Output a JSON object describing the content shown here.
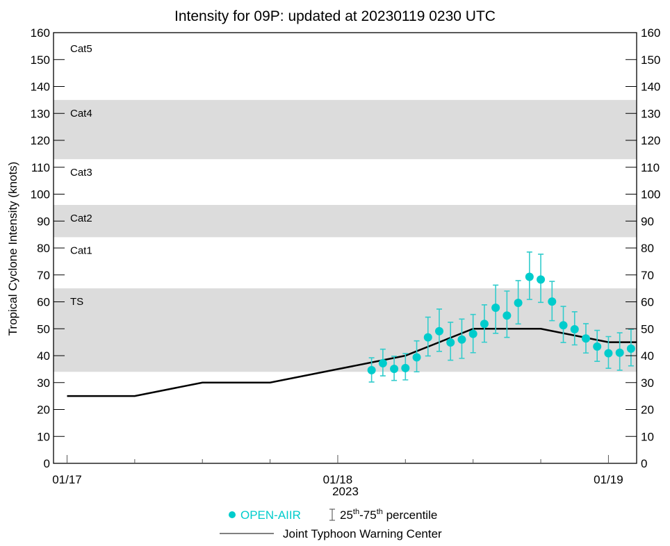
{
  "chart_data": {
    "type": "scatter",
    "title": "Intensity for 09P: updated at 20230119 0230 UTC",
    "ylabel": "Tropical Cyclone Intensity (knots)",
    "xlabel": "2023",
    "ylim": [
      0,
      160
    ],
    "yticks": [
      0,
      10,
      20,
      30,
      40,
      50,
      60,
      70,
      80,
      90,
      100,
      110,
      120,
      130,
      140,
      150,
      160
    ],
    "xlim": [
      "2023-01-16 22:48",
      "2023-01-19 02:30"
    ],
    "xticks": [
      {
        "time": "2023-01-17 00:00",
        "label": "01/17"
      },
      {
        "time": "2023-01-18 00:00",
        "label": "01/18"
      },
      {
        "time": "2023-01-19 00:00",
        "label": "01/19"
      }
    ],
    "minor_xtick_hours": 6,
    "grid": false,
    "bands": [
      {
        "label": "TS",
        "from": 34,
        "to": 65,
        "shaded": true
      },
      {
        "label": "Cat1",
        "from": 65,
        "to": 84,
        "shaded": false
      },
      {
        "label": "Cat2",
        "from": 84,
        "to": 96,
        "shaded": true
      },
      {
        "label": "Cat3",
        "from": 96,
        "to": 113,
        "shaded": false
      },
      {
        "label": "Cat4",
        "from": 113,
        "to": 135,
        "shaded": true
      },
      {
        "label": "Cat5",
        "from": 135,
        "to": 160,
        "shaded": false
      }
    ],
    "band_color": "#dcdcdc",
    "series": [
      {
        "name": "OPEN-AIIR",
        "color": "#00cccc",
        "type": "scatter",
        "points": [
          {
            "t": "2023-01-18 03:00",
            "y": 34.6,
            "p25": 30.2,
            "p75": 39.2
          },
          {
            "t": "2023-01-18 04:00",
            "y": 37.2,
            "p25": 32.5,
            "p75": 42.4
          },
          {
            "t": "2023-01-18 05:00",
            "y": 35.1,
            "p25": 30.8,
            "p75": 39.8
          },
          {
            "t": "2023-01-18 06:00",
            "y": 35.4,
            "p25": 31.0,
            "p75": 40.8
          },
          {
            "t": "2023-01-18 07:00",
            "y": 39.4,
            "p25": 34.0,
            "p75": 45.5
          },
          {
            "t": "2023-01-18 08:00",
            "y": 46.8,
            "p25": 39.9,
            "p75": 54.3
          },
          {
            "t": "2023-01-18 09:00",
            "y": 49.1,
            "p25": 41.6,
            "p75": 57.3
          },
          {
            "t": "2023-01-18 10:00",
            "y": 44.9,
            "p25": 38.3,
            "p75": 52.4
          },
          {
            "t": "2023-01-18 11:00",
            "y": 46.0,
            "p25": 39.0,
            "p75": 53.6
          },
          {
            "t": "2023-01-18 12:00",
            "y": 48.1,
            "p25": 41.1,
            "p75": 55.3
          },
          {
            "t": "2023-01-18 13:00",
            "y": 51.8,
            "p25": 45.0,
            "p75": 58.9
          },
          {
            "t": "2023-01-18 14:00",
            "y": 57.8,
            "p25": 48.3,
            "p75": 66.2
          },
          {
            "t": "2023-01-18 15:00",
            "y": 54.9,
            "p25": 46.8,
            "p75": 64.0
          },
          {
            "t": "2023-01-18 16:00",
            "y": 59.6,
            "p25": 51.8,
            "p75": 67.9
          },
          {
            "t": "2023-01-18 17:00",
            "y": 69.3,
            "p25": 60.9,
            "p75": 78.5
          },
          {
            "t": "2023-01-18 18:00",
            "y": 68.3,
            "p25": 59.8,
            "p75": 77.7
          },
          {
            "t": "2023-01-18 19:00",
            "y": 60.1,
            "p25": 53.0,
            "p75": 67.6
          },
          {
            "t": "2023-01-18 20:00",
            "y": 51.3,
            "p25": 44.9,
            "p75": 58.3
          },
          {
            "t": "2023-01-18 21:00",
            "y": 49.8,
            "p25": 44.0,
            "p75": 56.3
          },
          {
            "t": "2023-01-18 22:00",
            "y": 46.4,
            "p25": 41.0,
            "p75": 51.9
          },
          {
            "t": "2023-01-18 23:00",
            "y": 43.4,
            "p25": 37.9,
            "p75": 49.4
          },
          {
            "t": "2023-01-19 00:00",
            "y": 40.9,
            "p25": 35.3,
            "p75": 47.1
          },
          {
            "t": "2023-01-19 01:00",
            "y": 41.1,
            "p25": 34.6,
            "p75": 48.5
          },
          {
            "t": "2023-01-19 02:00",
            "y": 42.6,
            "p25": 36.2,
            "p75": 49.8
          }
        ]
      },
      {
        "name": "Joint Typhoon Warning Center",
        "color": "#000000",
        "type": "line",
        "points": [
          {
            "t": "2023-01-17 00:00",
            "y": 25
          },
          {
            "t": "2023-01-17 06:00",
            "y": 25
          },
          {
            "t": "2023-01-17 12:00",
            "y": 30
          },
          {
            "t": "2023-01-17 18:00",
            "y": 30
          },
          {
            "t": "2023-01-18 00:00",
            "y": 35
          },
          {
            "t": "2023-01-18 06:00",
            "y": 40
          },
          {
            "t": "2023-01-18 12:00",
            "y": 50
          },
          {
            "t": "2023-01-18 18:00",
            "y": 50
          },
          {
            "t": "2023-01-19 00:00",
            "y": 45
          },
          {
            "t": "2023-01-19 02:30",
            "y": 45
          }
        ]
      }
    ],
    "legend": {
      "placement": "bottom",
      "scatter_label": "OPEN-AIIR",
      "errorbar_label_a": "25",
      "errorbar_sup_a": "th",
      "errorbar_dash": "-75",
      "errorbar_sup_b": "th",
      "errorbar_label_b": " percentile",
      "line_label": "Joint Typhoon Warning Center"
    }
  }
}
